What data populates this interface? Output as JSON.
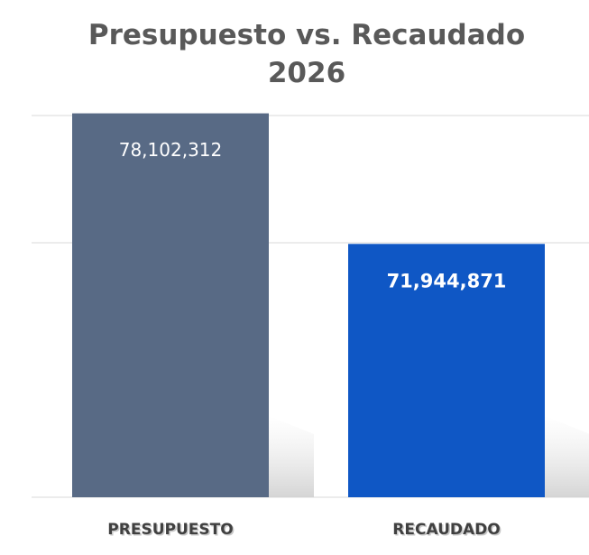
{
  "chart_data": {
    "type": "bar",
    "title": "Presupuesto vs. Recaudado 2026",
    "categories": [
      "PRESUPUESTO",
      "RECAUDADO"
    ],
    "values": [
      78102312,
      71944871
    ],
    "value_labels": [
      "78,102,312",
      "71,944,871"
    ],
    "colors": [
      "#586a85",
      "#0f57c5"
    ],
    "ylim": [
      60000000,
      78000000
    ],
    "yticks": [
      60000000,
      72000000,
      78000000
    ],
    "grid": true
  }
}
